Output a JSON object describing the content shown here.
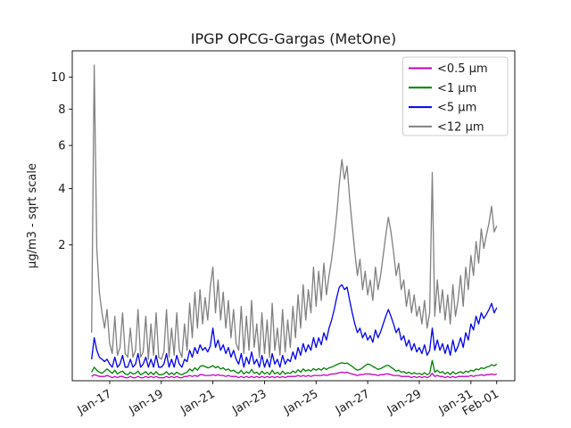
{
  "figure": {
    "background": "#ffffff"
  },
  "chart_data": {
    "type": "line",
    "title": "IPGP OPCG-Gargas (MetOne)",
    "xlabel": "",
    "ylabel": "µg/m3 - sqrt scale",
    "yscale": "sqrt",
    "ylim": [
      0,
      11.8
    ],
    "yticks": [
      2,
      4,
      6,
      8,
      10
    ],
    "xlim": [
      -0.45,
      16.7
    ],
    "x_unit": "days, day 0 = Jan-16",
    "xticks": [
      {
        "day": 1,
        "label": "Jan-17"
      },
      {
        "day": 3,
        "label": "Jan-19"
      },
      {
        "day": 5,
        "label": "Jan-21"
      },
      {
        "day": 7,
        "label": "Jan-23"
      },
      {
        "day": 9,
        "label": "Jan-25"
      },
      {
        "day": 11,
        "label": "Jan-27"
      },
      {
        "day": 13,
        "label": "Jan-29"
      },
      {
        "day": 15,
        "label": "Jan-31"
      },
      {
        "day": 16,
        "label": "Feb-01"
      }
    ],
    "legend_position": "upper right",
    "grid": false,
    "x_start": 0.3,
    "x_step": 0.1,
    "x_end": 16.0,
    "series": [
      {
        "name": "<0.5 µm",
        "color": "#c000c0",
        "values": [
          0.002,
          0.004,
          0.003,
          0.002,
          0.002,
          0.002,
          0.003,
          0.002,
          0.001,
          0.002,
          0.001,
          0.002,
          0.002,
          0.001,
          0.001,
          0.002,
          0.001,
          0.001,
          0.002,
          0.001,
          0.001,
          0.002,
          0.001,
          0.002,
          0.001,
          0.002,
          0.001,
          0.001,
          0.001,
          0.002,
          0.001,
          0.002,
          0.001,
          0.002,
          0.001,
          0.001,
          0.002,
          0.002,
          0.003,
          0.002,
          0.003,
          0.002,
          0.004,
          0.004,
          0.003,
          0.003,
          0.003,
          0.004,
          0.003,
          0.004,
          0.003,
          0.003,
          0.002,
          0.003,
          0.002,
          0.002,
          0.002,
          0.001,
          0.002,
          0.001,
          0.002,
          0.001,
          0.002,
          0.001,
          0.002,
          0.001,
          0.002,
          0.001,
          0.002,
          0.001,
          0.002,
          0.001,
          0.002,
          0.001,
          0.002,
          0.001,
          0.002,
          0.002,
          0.002,
          0.002,
          0.003,
          0.002,
          0.003,
          0.002,
          0.003,
          0.002,
          0.003,
          0.003,
          0.003,
          0.003,
          0.004,
          0.003,
          0.004,
          0.005,
          0.005,
          0.006,
          0.007,
          0.008,
          0.007,
          0.008,
          0.006,
          0.005,
          0.004,
          0.003,
          0.004,
          0.004,
          0.005,
          0.005,
          0.005,
          0.004,
          0.004,
          0.003,
          0.004,
          0.004,
          0.005,
          0.005,
          0.004,
          0.003,
          0.003,
          0.003,
          0.002,
          0.002,
          0.002,
          0.002,
          0.001,
          0.002,
          0.001,
          0.002,
          0.001,
          0.002,
          0.001,
          0.002,
          0.006,
          0.002,
          0.003,
          0.002,
          0.002,
          0.001,
          0.002,
          0.001,
          0.002,
          0.001,
          0.002,
          0.002,
          0.002,
          0.002,
          0.002,
          0.003,
          0.002,
          0.003,
          0.003,
          0.004,
          0.003,
          0.004,
          0.004,
          0.005,
          0.004,
          0.005
        ]
      },
      {
        "name": "<1 µm",
        "color": "#007f00",
        "values": [
          0.008,
          0.02,
          0.012,
          0.008,
          0.006,
          0.01,
          0.015,
          0.01,
          0.006,
          0.012,
          0.005,
          0.008,
          0.01,
          0.005,
          0.004,
          0.008,
          0.005,
          0.006,
          0.01,
          0.004,
          0.006,
          0.009,
          0.004,
          0.008,
          0.004,
          0.009,
          0.004,
          0.004,
          0.005,
          0.009,
          0.004,
          0.007,
          0.004,
          0.008,
          0.005,
          0.004,
          0.006,
          0.008,
          0.015,
          0.01,
          0.018,
          0.012,
          0.022,
          0.025,
          0.022,
          0.018,
          0.02,
          0.025,
          0.018,
          0.022,
          0.015,
          0.018,
          0.012,
          0.015,
          0.01,
          0.012,
          0.008,
          0.006,
          0.012,
          0.005,
          0.009,
          0.006,
          0.014,
          0.006,
          0.008,
          0.004,
          0.01,
          0.005,
          0.008,
          0.004,
          0.012,
          0.005,
          0.008,
          0.004,
          0.01,
          0.005,
          0.007,
          0.006,
          0.01,
          0.007,
          0.013,
          0.008,
          0.015,
          0.01,
          0.013,
          0.01,
          0.016,
          0.012,
          0.016,
          0.012,
          0.018,
          0.014,
          0.018,
          0.02,
          0.024,
          0.028,
          0.032,
          0.035,
          0.032,
          0.034,
          0.028,
          0.022,
          0.016,
          0.012,
          0.014,
          0.018,
          0.025,
          0.03,
          0.028,
          0.022,
          0.018,
          0.014,
          0.016,
          0.02,
          0.024,
          0.026,
          0.02,
          0.015,
          0.01,
          0.012,
          0.008,
          0.009,
          0.006,
          0.008,
          0.005,
          0.007,
          0.005,
          0.006,
          0.004,
          0.007,
          0.004,
          0.006,
          0.045,
          0.008,
          0.012,
          0.007,
          0.009,
          0.005,
          0.008,
          0.004,
          0.009,
          0.005,
          0.007,
          0.009,
          0.006,
          0.01,
          0.008,
          0.012,
          0.01,
          0.015,
          0.013,
          0.018,
          0.016,
          0.02,
          0.022,
          0.028,
          0.024,
          0.03
        ]
      },
      {
        "name": "<5 µm",
        "color": "#0000ee",
        "values": [
          0.05,
          0.2,
          0.1,
          0.06,
          0.05,
          0.04,
          0.05,
          0.03,
          0.02,
          0.06,
          0.02,
          0.03,
          0.07,
          0.02,
          0.02,
          0.05,
          0.02,
          0.03,
          0.08,
          0.02,
          0.03,
          0.06,
          0.02,
          0.05,
          0.02,
          0.07,
          0.02,
          0.02,
          0.03,
          0.08,
          0.02,
          0.05,
          0.02,
          0.07,
          0.03,
          0.02,
          0.05,
          0.04,
          0.1,
          0.06,
          0.12,
          0.08,
          0.14,
          0.1,
          0.12,
          0.09,
          0.13,
          0.3,
          0.12,
          0.18,
          0.1,
          0.14,
          0.08,
          0.12,
          0.06,
          0.1,
          0.05,
          0.03,
          0.08,
          0.02,
          0.06,
          0.03,
          0.09,
          0.03,
          0.05,
          0.02,
          0.07,
          0.02,
          0.05,
          0.02,
          0.08,
          0.03,
          0.05,
          0.02,
          0.07,
          0.03,
          0.05,
          0.04,
          0.09,
          0.05,
          0.12,
          0.07,
          0.15,
          0.09,
          0.14,
          0.1,
          0.2,
          0.12,
          0.2,
          0.14,
          0.25,
          0.18,
          0.3,
          0.4,
          0.55,
          0.75,
          0.95,
          1.0,
          0.9,
          0.95,
          0.7,
          0.5,
          0.35,
          0.25,
          0.3,
          0.2,
          0.25,
          0.18,
          0.22,
          0.16,
          0.28,
          0.2,
          0.26,
          0.35,
          0.45,
          0.55,
          0.45,
          0.35,
          0.25,
          0.3,
          0.18,
          0.22,
          0.13,
          0.18,
          0.1,
          0.15,
          0.09,
          0.12,
          0.08,
          0.14,
          0.07,
          0.1,
          0.3,
          0.1,
          0.18,
          0.1,
          0.15,
          0.08,
          0.14,
          0.07,
          0.18,
          0.09,
          0.13,
          0.2,
          0.12,
          0.25,
          0.18,
          0.35,
          0.28,
          0.45,
          0.35,
          0.5,
          0.42,
          0.48,
          0.55,
          0.65,
          0.5,
          0.58
        ]
      },
      {
        "name": "<12 µm",
        "color": "#808080",
        "values": [
          0.25,
          10.8,
          1.9,
          0.85,
          0.5,
          0.3,
          0.55,
          0.15,
          0.08,
          0.45,
          0.07,
          0.12,
          0.5,
          0.08,
          0.06,
          0.3,
          0.06,
          0.1,
          0.55,
          0.06,
          0.09,
          0.45,
          0.05,
          0.35,
          0.07,
          0.5,
          0.06,
          0.05,
          0.09,
          0.55,
          0.06,
          0.3,
          0.07,
          0.5,
          0.1,
          0.06,
          0.35,
          0.1,
          0.65,
          0.2,
          0.85,
          0.3,
          0.9,
          0.35,
          0.75,
          0.4,
          0.95,
          1.4,
          0.5,
          1.1,
          0.4,
          0.85,
          0.3,
          0.7,
          0.2,
          0.55,
          0.15,
          0.1,
          0.6,
          0.08,
          0.45,
          0.1,
          0.7,
          0.12,
          0.35,
          0.06,
          0.5,
          0.08,
          0.4,
          0.06,
          0.65,
          0.1,
          0.3,
          0.07,
          0.55,
          0.09,
          0.4,
          0.12,
          0.6,
          0.2,
          0.8,
          0.3,
          1.0,
          0.4,
          0.9,
          0.5,
          1.4,
          0.6,
          1.3,
          0.7,
          1.5,
          0.8,
          1.2,
          1.6,
          2.2,
          3.0,
          4.2,
          5.3,
          4.4,
          5.0,
          3.6,
          2.6,
          1.8,
          1.2,
          1.6,
          0.9,
          1.3,
          0.8,
          1.1,
          0.7,
          1.4,
          0.9,
          1.2,
          1.7,
          2.3,
          2.9,
          2.4,
          1.8,
          1.2,
          1.5,
          0.9,
          1.1,
          0.6,
          0.9,
          0.5,
          0.8,
          0.45,
          0.6,
          0.35,
          0.7,
          0.3,
          0.5,
          4.7,
          0.45,
          1.1,
          0.5,
          0.9,
          0.4,
          0.8,
          0.35,
          1.0,
          0.45,
          0.7,
          1.2,
          0.6,
          1.4,
          0.9,
          1.7,
          1.2,
          2.1,
          1.5,
          2.5,
          1.9,
          2.3,
          2.7,
          3.3,
          2.4,
          2.6
        ]
      }
    ]
  }
}
